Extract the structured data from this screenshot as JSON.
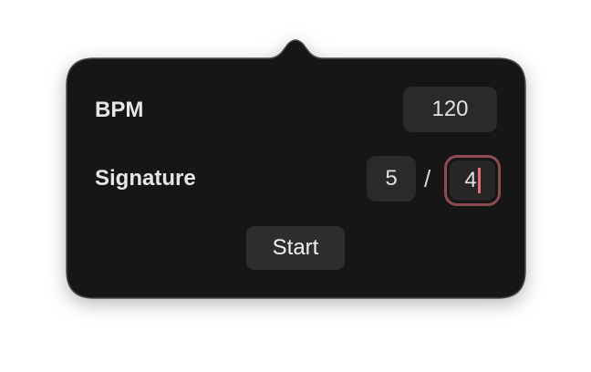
{
  "popover": {
    "bpm_label": "BPM",
    "bpm_value": "120",
    "signature_label": "Signature",
    "signature_numerator": "5",
    "signature_separator": "/",
    "signature_denominator": "4",
    "start_label": "Start"
  },
  "colors": {
    "popover_background": "#121212",
    "field_background": "#2a2a2a",
    "focus_ring": "#8e4a52",
    "caret": "#e86b78"
  }
}
